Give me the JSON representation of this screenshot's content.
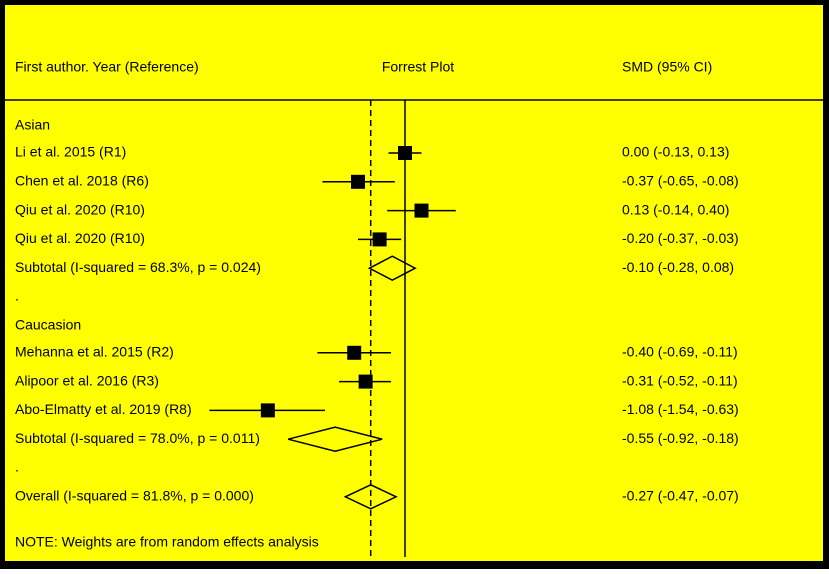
{
  "chart_data": {
    "type": "forest",
    "title": "Forrest Plot",
    "label_header": "First author. Year (Reference)",
    "value_header": "SMD (95% CI)",
    "note": "NOTE: Weights are from random effects analysis",
    "reference_line": 0,
    "groups": [
      {
        "name": "Asian",
        "rows": [
          {
            "label": "Li et al. 2015 (R1)",
            "estimate": 0.0,
            "lower": -0.13,
            "upper": 0.13,
            "value_label": "0.00 (-0.13, 0.13)"
          },
          {
            "label": "Chen et al. 2018 (R6)",
            "estimate": -0.37,
            "lower": -0.65,
            "upper": -0.08,
            "value_label": "-0.37 (-0.65, -0.08)"
          },
          {
            "label": "Qiu et al. 2020 (R10)",
            "estimate": 0.13,
            "lower": -0.14,
            "upper": 0.4,
            "value_label": "0.13 (-0.14, 0.40)"
          },
          {
            "label": "Qiu et al. 2020 (R10)",
            "estimate": -0.2,
            "lower": -0.37,
            "upper": -0.03,
            "value_label": "-0.20 (-0.37, -0.03)"
          }
        ],
        "subtotal": {
          "label": "Subtotal  (I-squared = 68.3%, p = 0.024)",
          "estimate": -0.1,
          "lower": -0.28,
          "upper": 0.08,
          "value_label": "-0.10 (-0.28, 0.08)"
        },
        "separator": "."
      },
      {
        "name": "Caucasion",
        "rows": [
          {
            "label": "Mehanna et al. 2015 (R2)",
            "estimate": -0.4,
            "lower": -0.69,
            "upper": -0.11,
            "value_label": "-0.40 (-0.69, -0.11)"
          },
          {
            "label": "Alipoor et al. 2016 (R3)",
            "estimate": -0.31,
            "lower": -0.52,
            "upper": -0.11,
            "value_label": "-0.31 (-0.52, -0.11)"
          },
          {
            "label": "Abo-Elmatty et al. 2019 (R8)",
            "estimate": -1.08,
            "lower": -1.54,
            "upper": -0.63,
            "value_label": "-1.08 (-1.54, -0.63)"
          }
        ],
        "subtotal": {
          "label": "Subtotal  (I-squared = 78.0%, p = 0.011)",
          "estimate": -0.55,
          "lower": -0.92,
          "upper": -0.18,
          "value_label": "-0.55 (-0.92, -0.18)"
        },
        "separator": "."
      }
    ],
    "overall": {
      "label": "Overall  (I-squared = 81.8%, p = 0.000)",
      "estimate": -0.27,
      "lower": -0.47,
      "upper": -0.07,
      "value_label": "-0.27 (-0.47, -0.07)"
    }
  }
}
